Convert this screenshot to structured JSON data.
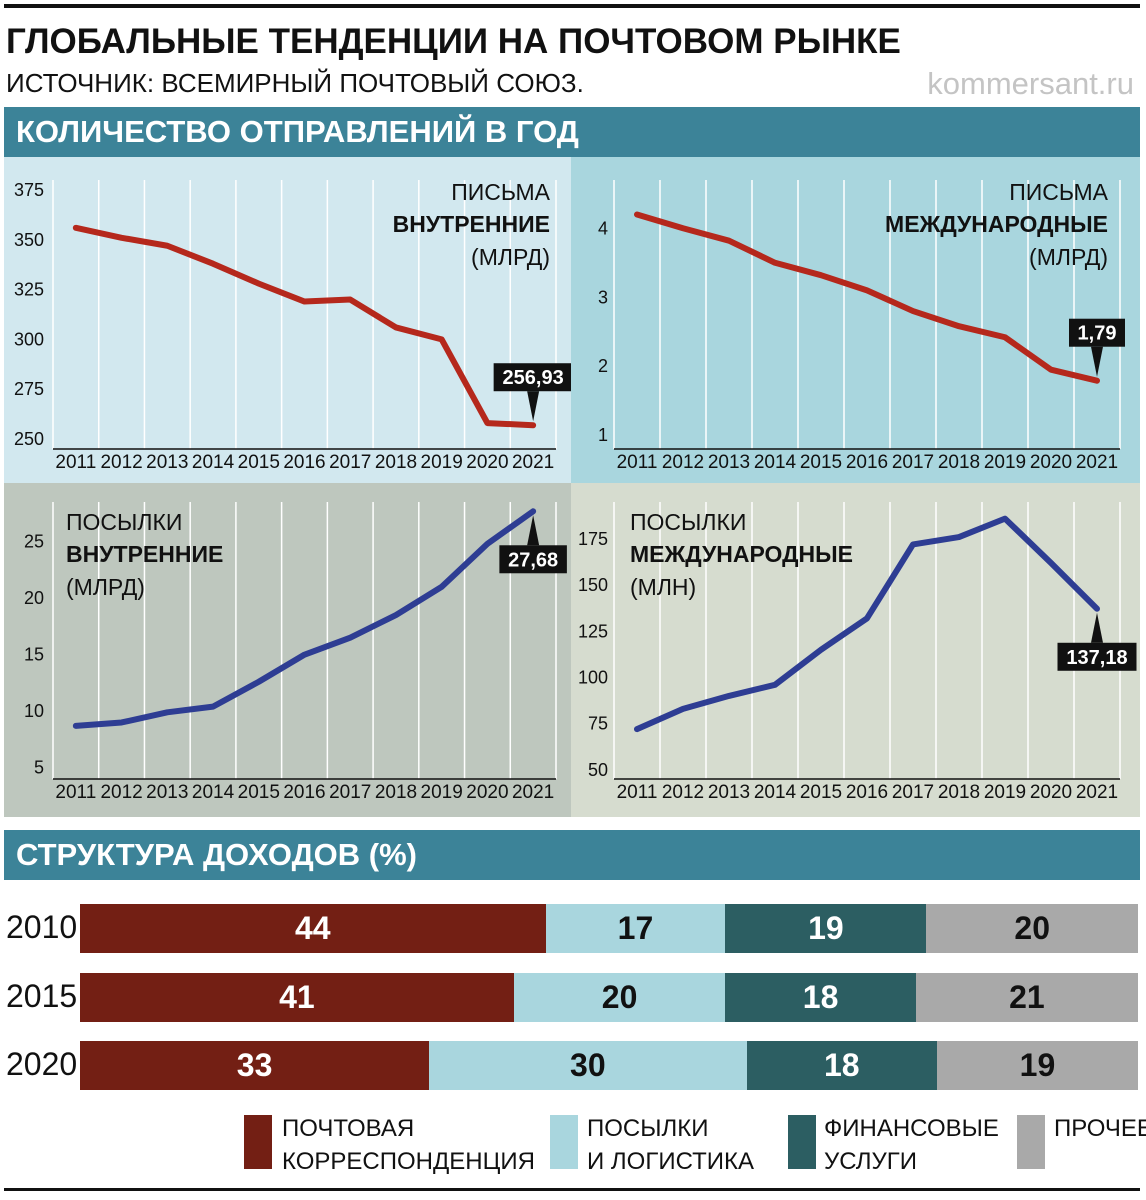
{
  "header": {
    "title": "ГЛОБАЛЬНЫЕ ТЕНДЕНЦИИ НА ПОЧТОВОМ РЫНКЕ",
    "source": "ИСТОЧНИК: ВСЕМИРНЫЙ ПОЧТОВЫЙ СОЮЗ.",
    "brand": "kommersant.ru"
  },
  "section1_title": "КОЛИЧЕСТВО ОТПРАВЛЕНИЙ В ГОД",
  "section2_title": "СТРУКТУРА ДОХОДОВ (%)",
  "colors": {
    "band": "#3c8398",
    "line_red": "#b5281c",
    "line_blue": "#2e3d93",
    "panel1_bg": "#d2e8ef",
    "panel2_bg": "#a9d6de",
    "panel3_bg": "#bec7be",
    "panel4_bg": "#d6dccf",
    "postal": "#731f14",
    "parcels": "#a9d6de",
    "financial": "#2c5e62",
    "other": "#a9a9a9"
  },
  "chart_data": [
    {
      "type": "line",
      "label_top": "ПИСЬМА",
      "label_bold": "ВНУТРЕННИЕ",
      "label_unit": "(МЛРД)",
      "x": [
        "2011",
        "2012",
        "2013",
        "2014",
        "2015",
        "2016",
        "2017",
        "2018",
        "2019",
        "2020",
        "2021"
      ],
      "values": [
        356,
        351,
        347,
        338,
        328,
        319,
        320,
        306,
        300,
        258,
        256.93
      ],
      "ylim": [
        245,
        380
      ],
      "yticks": [
        250,
        275,
        300,
        325,
        350,
        375
      ],
      "callout": "256,93"
    },
    {
      "type": "line",
      "label_top": "ПИСЬМА",
      "label_bold": "МЕЖДУНАРОДНЫЕ",
      "label_unit": "(МЛРД)",
      "x": [
        "2011",
        "2012",
        "2013",
        "2014",
        "2015",
        "2016",
        "2017",
        "2018",
        "2019",
        "2020",
        "2021"
      ],
      "values": [
        4.2,
        4.0,
        3.82,
        3.5,
        3.32,
        3.1,
        2.8,
        2.58,
        2.42,
        1.95,
        1.79
      ],
      "ylim": [
        0.8,
        4.7
      ],
      "yticks": [
        1,
        2,
        3,
        4
      ],
      "callout": "1,79"
    },
    {
      "type": "line",
      "label_top": "ПОСЫЛКИ",
      "label_bold": "ВНУТРЕННИЕ",
      "label_unit": "(МЛРД)",
      "x": [
        "2011",
        "2012",
        "2013",
        "2014",
        "2015",
        "2016",
        "2017",
        "2018",
        "2019",
        "2020",
        "2021"
      ],
      "values": [
        8.7,
        9.0,
        9.9,
        10.4,
        12.6,
        15.0,
        16.5,
        18.5,
        21.0,
        24.8,
        27.68
      ],
      "ylim": [
        4,
        28.5
      ],
      "yticks": [
        5,
        10,
        15,
        20,
        25
      ],
      "callout": "27,68"
    },
    {
      "type": "line",
      "label_top": "ПОСЫЛКИ",
      "label_bold": "МЕЖДУНАРОДНЫЕ",
      "label_unit": "(МЛН)",
      "x": [
        "2011",
        "2012",
        "2013",
        "2014",
        "2015",
        "2016",
        "2017",
        "2018",
        "2019",
        "2020",
        "2021"
      ],
      "values": [
        72,
        83,
        90,
        96,
        115,
        132,
        172,
        176,
        186,
        162,
        137.18
      ],
      "ylim": [
        45,
        195
      ],
      "yticks": [
        50,
        75,
        100,
        125,
        150,
        175
      ],
      "callout": "137,18"
    },
    {
      "type": "bar",
      "stacked": true,
      "categories": [
        "2010",
        "2015",
        "2020"
      ],
      "series": [
        {
          "name": "ПОЧТОВАЯ КОРРЕСПОНДЕНЦИЯ",
          "values": [
            44,
            41,
            33
          ]
        },
        {
          "name": "ПОСЫЛКИ И ЛОГИСТИКА",
          "values": [
            17,
            20,
            30
          ]
        },
        {
          "name": "ФИНАНСОВЫЕ УСЛУГИ",
          "values": [
            19,
            18,
            18
          ]
        },
        {
          "name": "ПРОЧЕЕ",
          "values": [
            20,
            21,
            19
          ]
        }
      ]
    }
  ],
  "legend": [
    {
      "line1": "ПОЧТОВАЯ",
      "line2": "КОРРЕСПОНДЕНЦИЯ"
    },
    {
      "line1": "ПОСЫЛКИ",
      "line2": "И ЛОГИСТИКА"
    },
    {
      "line1": "ФИНАНСОВЫЕ",
      "line2": "УСЛУГИ"
    },
    {
      "line1": "ПРОЧЕЕ",
      "line2": ""
    }
  ]
}
